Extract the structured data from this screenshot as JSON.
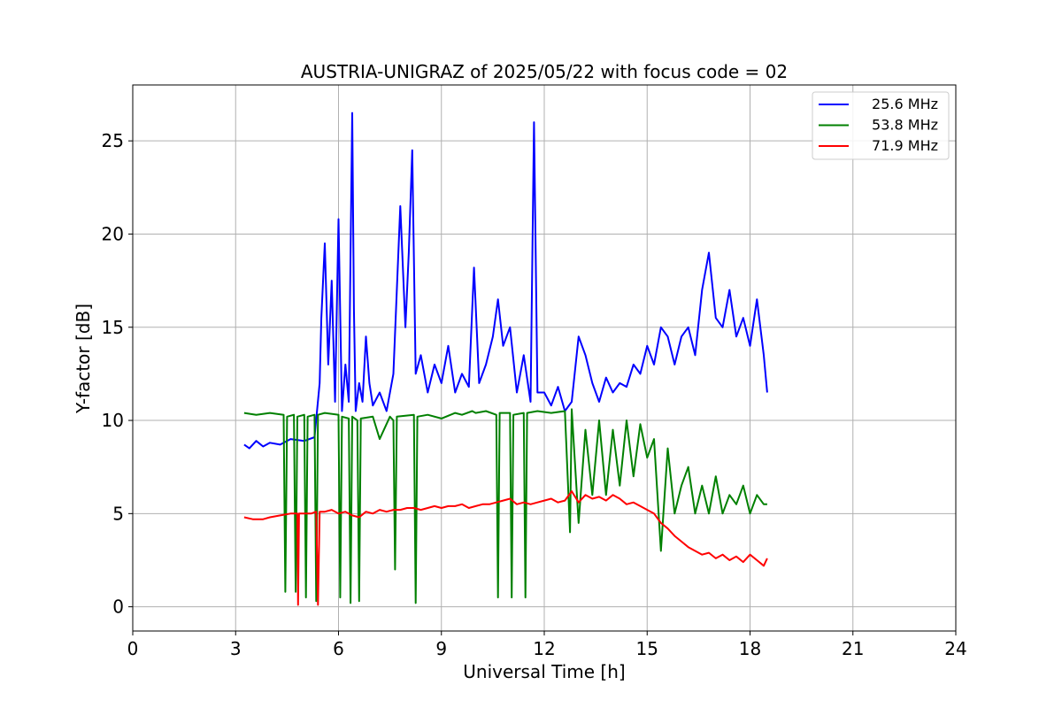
{
  "chart_data": {
    "type": "line",
    "title": "AUSTRIA-UNIGRAZ of 2025/05/22 with focus code = 02",
    "xlabel": "Universal Time [h]",
    "ylabel": "Y-factor [dB]",
    "xlim": [
      0,
      24
    ],
    "ylim": [
      -1.3,
      28
    ],
    "xticks": [
      0,
      3,
      6,
      9,
      12,
      15,
      18,
      21,
      24
    ],
    "yticks": [
      0,
      5,
      10,
      15,
      20,
      25
    ],
    "xtick_labels": [
      "0",
      "3",
      "6",
      "9",
      "12",
      "15",
      "18",
      "21",
      "24"
    ],
    "ytick_labels": [
      "0",
      "5",
      "10",
      "15",
      "20",
      "25"
    ],
    "grid": true,
    "legend_position": "top-right",
    "series": [
      {
        "name": "25.6 MHz",
        "color": "#0000ff",
        "x": [
          3.25,
          3.4,
          3.6,
          3.8,
          4.0,
          4.3,
          4.6,
          5.0,
          5.3,
          5.45,
          5.5,
          5.6,
          5.7,
          5.8,
          5.9,
          6.0,
          6.1,
          6.2,
          6.3,
          6.4,
          6.45,
          6.5,
          6.6,
          6.7,
          6.8,
          6.9,
          7.0,
          7.2,
          7.4,
          7.6,
          7.8,
          7.95,
          8.05,
          8.15,
          8.25,
          8.4,
          8.6,
          8.8,
          9.0,
          9.2,
          9.4,
          9.6,
          9.8,
          9.95,
          10.1,
          10.3,
          10.5,
          10.65,
          10.8,
          11.0,
          11.2,
          11.4,
          11.6,
          11.7,
          11.8,
          12.0,
          12.2,
          12.4,
          12.6,
          12.8,
          13.0,
          13.2,
          13.4,
          13.6,
          13.8,
          14.0,
          14.2,
          14.4,
          14.6,
          14.8,
          15.0,
          15.2,
          15.4,
          15.6,
          15.8,
          16.0,
          16.2,
          16.4,
          16.6,
          16.8,
          17.0,
          17.2,
          17.4,
          17.6,
          17.8,
          18.0,
          18.2,
          18.4,
          18.5
        ],
        "y": [
          8.7,
          8.5,
          8.9,
          8.6,
          8.8,
          8.7,
          9.0,
          8.9,
          9.1,
          12.0,
          15.5,
          19.5,
          13.0,
          17.5,
          11.0,
          20.8,
          10.5,
          13.0,
          11.0,
          26.5,
          16.0,
          10.5,
          12.0,
          11.0,
          14.5,
          12.0,
          10.8,
          11.5,
          10.5,
          12.5,
          21.5,
          15.0,
          19.0,
          24.5,
          12.5,
          13.5,
          11.5,
          13.0,
          12.0,
          14.0,
          11.5,
          12.5,
          11.8,
          18.2,
          12.0,
          13.0,
          14.5,
          16.5,
          14.0,
          15.0,
          11.5,
          13.5,
          11.0,
          26.0,
          11.5,
          11.5,
          10.8,
          11.8,
          10.5,
          11.0,
          14.5,
          13.5,
          12.0,
          11.0,
          12.3,
          11.5,
          12.0,
          11.8,
          13.0,
          12.5,
          14.0,
          13.0,
          15.0,
          14.5,
          13.0,
          14.5,
          15.0,
          13.5,
          17.0,
          19.0,
          15.5,
          15.0,
          17.0,
          14.5,
          15.5,
          14.0,
          16.5,
          13.5,
          11.5
        ]
      },
      {
        "name": "53.8 MHz",
        "color": "#008000",
        "x": [
          3.25,
          3.6,
          4.0,
          4.4,
          4.45,
          4.5,
          4.7,
          4.75,
          4.8,
          5.0,
          5.05,
          5.1,
          5.3,
          5.35,
          5.4,
          5.6,
          6.0,
          6.05,
          6.1,
          6.3,
          6.35,
          6.4,
          6.55,
          6.6,
          6.65,
          7.0,
          7.2,
          7.5,
          7.6,
          7.65,
          7.7,
          8.2,
          8.25,
          8.3,
          8.6,
          9.0,
          9.4,
          9.6,
          9.9,
          10.0,
          10.3,
          10.6,
          10.65,
          10.7,
          11.0,
          11.05,
          11.1,
          11.4,
          11.45,
          11.5,
          11.8,
          12.2,
          12.6,
          12.75,
          12.8,
          13.0,
          13.2,
          13.4,
          13.6,
          13.8,
          14.0,
          14.2,
          14.4,
          14.6,
          14.8,
          15.0,
          15.2,
          15.4,
          15.6,
          15.8,
          16.0,
          16.2,
          16.4,
          16.6,
          16.8,
          17.0,
          17.2,
          17.4,
          17.6,
          17.8,
          18.0,
          18.2,
          18.4,
          18.5
        ],
        "y": [
          10.4,
          10.3,
          10.4,
          10.3,
          0.8,
          10.2,
          10.3,
          0.8,
          10.2,
          10.3,
          0.5,
          10.2,
          10.3,
          0.3,
          10.3,
          10.4,
          10.3,
          0.5,
          10.2,
          10.1,
          0.2,
          10.2,
          10.0,
          0.3,
          10.1,
          10.2,
          9.0,
          10.2,
          10.0,
          2.0,
          10.2,
          10.3,
          0.2,
          10.2,
          10.3,
          10.1,
          10.4,
          10.3,
          10.5,
          10.4,
          10.5,
          10.3,
          0.5,
          10.4,
          10.4,
          0.5,
          10.3,
          10.4,
          0.5,
          10.4,
          10.5,
          10.4,
          10.5,
          4.0,
          10.6,
          4.5,
          9.5,
          6.0,
          10.0,
          6.0,
          9.5,
          6.5,
          10.0,
          7.0,
          9.8,
          8.0,
          9.0,
          3.0,
          8.5,
          5.0,
          6.5,
          7.5,
          5.0,
          6.5,
          5.0,
          7.0,
          5.0,
          6.0,
          5.5,
          6.5,
          5.0,
          6.0,
          5.5,
          5.5
        ]
      },
      {
        "name": "71.9 MHz",
        "color": "#ff0000",
        "x": [
          3.25,
          3.5,
          3.8,
          4.0,
          4.3,
          4.6,
          4.8,
          4.82,
          4.85,
          5.0,
          5.2,
          5.35,
          5.4,
          5.45,
          5.6,
          5.8,
          6.0,
          6.2,
          6.4,
          6.6,
          6.8,
          7.0,
          7.2,
          7.4,
          7.6,
          7.8,
          8.0,
          8.2,
          8.4,
          8.6,
          8.8,
          9.0,
          9.2,
          9.4,
          9.6,
          9.8,
          10.0,
          10.2,
          10.4,
          10.6,
          10.8,
          11.0,
          11.2,
          11.4,
          11.6,
          11.8,
          12.0,
          12.2,
          12.4,
          12.6,
          12.8,
          13.0,
          13.2,
          13.4,
          13.6,
          13.8,
          14.0,
          14.2,
          14.4,
          14.6,
          14.8,
          15.0,
          15.2,
          15.4,
          15.6,
          15.8,
          16.0,
          16.2,
          16.4,
          16.6,
          16.8,
          17.0,
          17.2,
          17.4,
          17.6,
          17.8,
          18.0,
          18.2,
          18.4,
          18.5
        ],
        "y": [
          4.8,
          4.7,
          4.7,
          4.8,
          4.9,
          5.0,
          5.0,
          0.1,
          5.0,
          5.0,
          5.0,
          5.1,
          0.1,
          5.1,
          5.1,
          5.2,
          5.0,
          5.1,
          4.9,
          4.8,
          5.1,
          5.0,
          5.2,
          5.1,
          5.2,
          5.2,
          5.3,
          5.3,
          5.2,
          5.3,
          5.4,
          5.3,
          5.4,
          5.4,
          5.5,
          5.3,
          5.4,
          5.5,
          5.5,
          5.6,
          5.7,
          5.8,
          5.5,
          5.6,
          5.5,
          5.6,
          5.7,
          5.8,
          5.6,
          5.7,
          6.2,
          5.6,
          6.0,
          5.8,
          5.9,
          5.7,
          6.0,
          5.8,
          5.5,
          5.6,
          5.4,
          5.2,
          5.0,
          4.5,
          4.2,
          3.8,
          3.5,
          3.2,
          3.0,
          2.8,
          2.9,
          2.6,
          2.8,
          2.5,
          2.7,
          2.4,
          2.8,
          2.5,
          2.2,
          2.6
        ]
      }
    ]
  }
}
